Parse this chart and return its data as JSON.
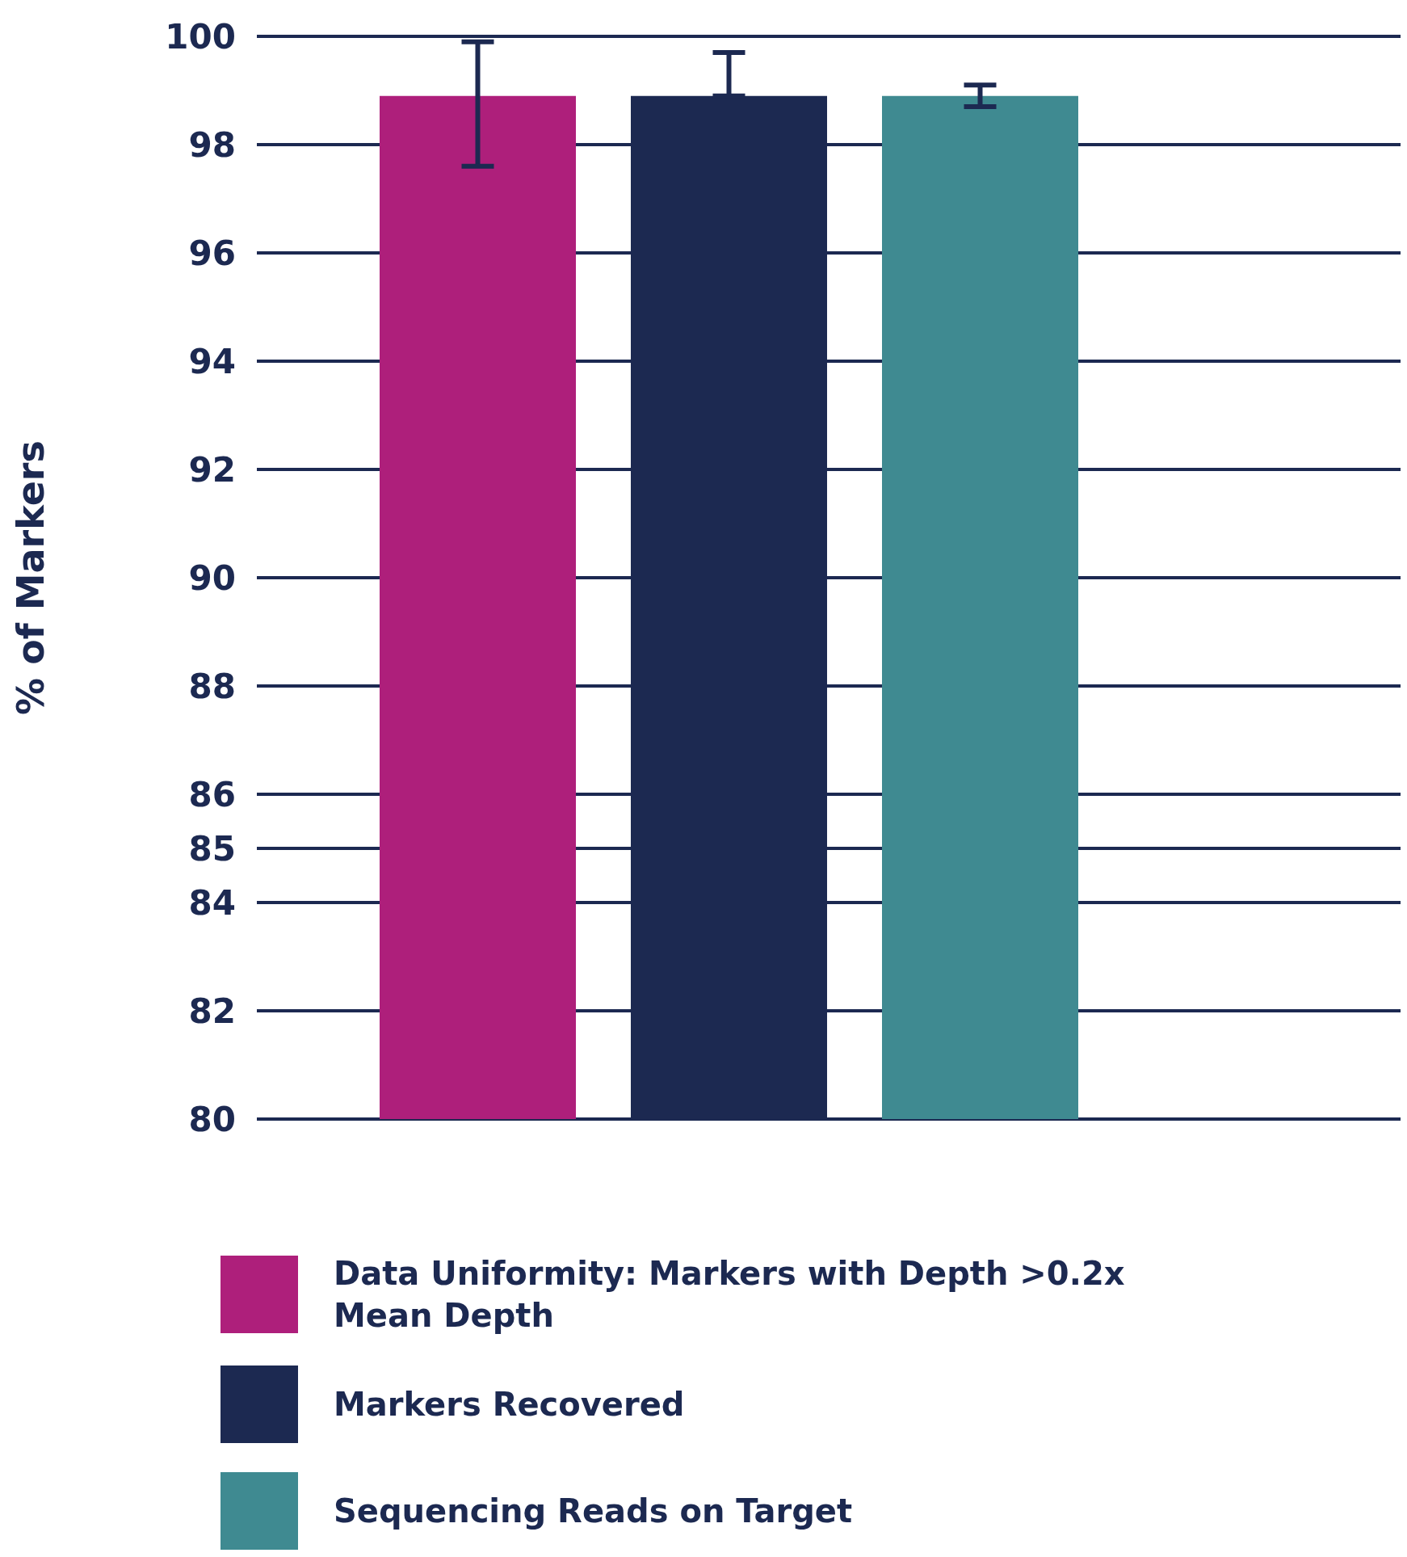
{
  "chart_data": {
    "type": "bar",
    "ylabel": "% of Markers",
    "categories": [
      null
    ],
    "series": [
      {
        "name": "Data Uniformity: Markers with Depth >0.2x Mean Depth",
        "color": "#ae1f7b",
        "values": [
          98.9
        ],
        "errors": [
          [
            97.6,
            99.9
          ]
        ]
      },
      {
        "name": "Markers Recovered",
        "color": "#1c2951",
        "values": [
          98.9
        ],
        "errors": [
          [
            98.9,
            99.7
          ]
        ]
      },
      {
        "name": "Sequencing Reads on Target",
        "color": "#3f8a91",
        "values": [
          98.9
        ],
        "errors": [
          [
            98.7,
            99.1
          ]
        ]
      }
    ],
    "ylim": [
      80,
      100
    ],
    "yticks": [
      80,
      82,
      84,
      85,
      86,
      88,
      90,
      92,
      94,
      96,
      98,
      100
    ],
    "grid": "y",
    "legend": "bottom",
    "tick_labels": "y"
  }
}
